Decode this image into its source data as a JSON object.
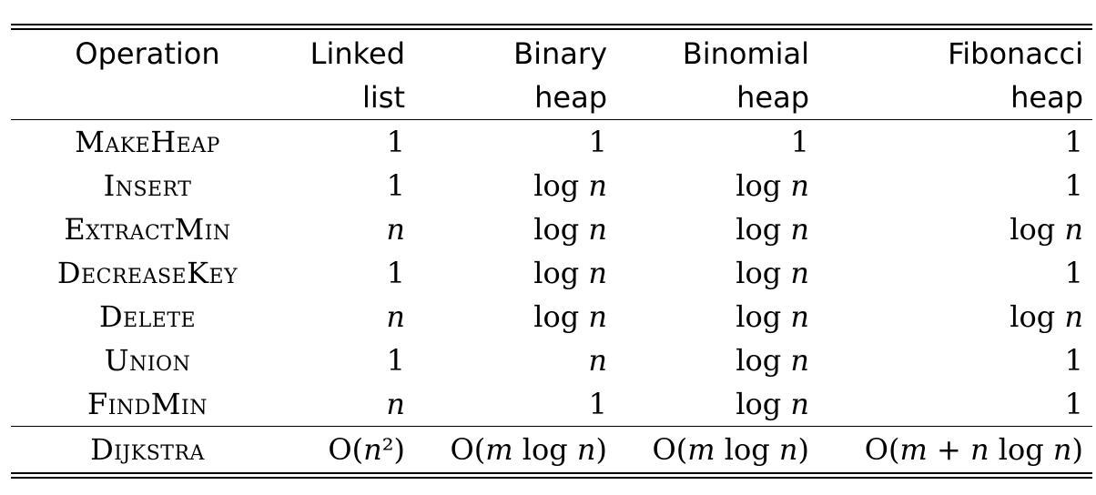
{
  "table": {
    "header": [
      "Operation",
      "Linked list",
      "Binary heap",
      "Binomial heap",
      "Fibonacci heap"
    ],
    "rows": [
      [
        "MakeHeap",
        "1",
        "1",
        "1",
        "1"
      ],
      [
        "Insert",
        "1",
        "log n",
        "log n",
        "1"
      ],
      [
        "ExtractMin",
        "n",
        "log n",
        "log n",
        "log n"
      ],
      [
        "DecreaseKey",
        "1",
        "log n",
        "log n",
        "1"
      ],
      [
        "Delete",
        "n",
        "log n",
        "log n",
        "log n"
      ],
      [
        "Union",
        "1",
        "n",
        "log n",
        "1"
      ],
      [
        "FindMin",
        "n",
        "1",
        "log n",
        "1"
      ]
    ],
    "footer": [
      "Dijkstra",
      "O(n²)",
      "O(m log n)",
      "O(m log n)",
      "O(m + n log n)"
    ]
  }
}
